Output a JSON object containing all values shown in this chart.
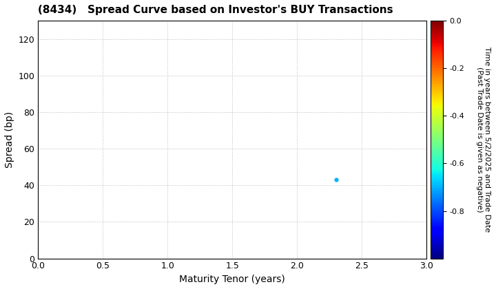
{
  "title": "(8434)   Spread Curve based on Investor's BUY Transactions",
  "xlabel": "Maturity Tenor (years)",
  "ylabel": "Spread (bp)",
  "xlim": [
    0.0,
    3.0
  ],
  "ylim": [
    0,
    130
  ],
  "xticks": [
    0.0,
    0.5,
    1.0,
    1.5,
    2.0,
    2.5,
    3.0
  ],
  "yticks": [
    0,
    20,
    40,
    60,
    80,
    100,
    120
  ],
  "scatter_x": [
    2.3
  ],
  "scatter_y": [
    43
  ],
  "scatter_color_val": [
    -0.7
  ],
  "colorbar_min": -1.0,
  "colorbar_max": 0.0,
  "colorbar_ticks": [
    0.0,
    -0.2,
    -0.4,
    -0.6,
    -0.8
  ],
  "colorbar_label_line1": "Time in years between 5/2/2025 and Trade Date",
  "colorbar_label_line2": "(Past Trade Date is given as negative)",
  "background_color": "#ffffff",
  "grid_color": "#bbbbbb",
  "title_fontsize": 11,
  "axis_label_fontsize": 10,
  "tick_fontsize": 9,
  "colorbar_fontsize": 8,
  "marker_size": 20
}
